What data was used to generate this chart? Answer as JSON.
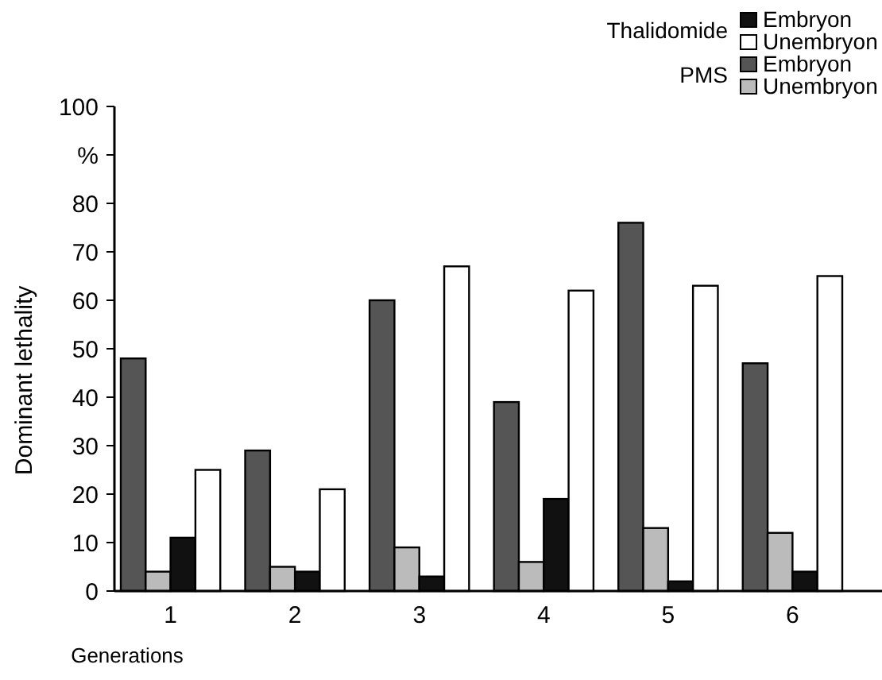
{
  "chart_data": {
    "type": "bar",
    "xlabel": "Generations",
    "ylabel": "Dominant lethality",
    "categories": [
      "1",
      "2",
      "3",
      "4",
      "5",
      "6"
    ],
    "series": [
      {
        "name": "Embryon",
        "color": "#555555",
        "values": [
          48,
          29,
          60,
          39,
          76,
          47
        ]
      },
      {
        "name": "Unembryon",
        "color": "#bbbbbb",
        "values": [
          4,
          5,
          9,
          6,
          13,
          12
        ]
      },
      {
        "name": "Embryon",
        "color": "#111111",
        "values": [
          11,
          4,
          3,
          19,
          2,
          4
        ]
      },
      {
        "name": "Unembryon",
        "color": "#ffffff",
        "values": [
          25,
          21,
          67,
          62,
          63,
          65
        ]
      }
    ],
    "annotations": [
      "PMS",
      "Thalidomide"
    ],
    "ylim": [
      0,
      100
    ],
    "yticks": [
      0,
      10,
      20,
      30,
      40,
      50,
      60,
      70,
      80,
      {
        "value": 90,
        "label": "%"
      },
      100
    ],
    "grid": false,
    "legend": "top right"
  }
}
